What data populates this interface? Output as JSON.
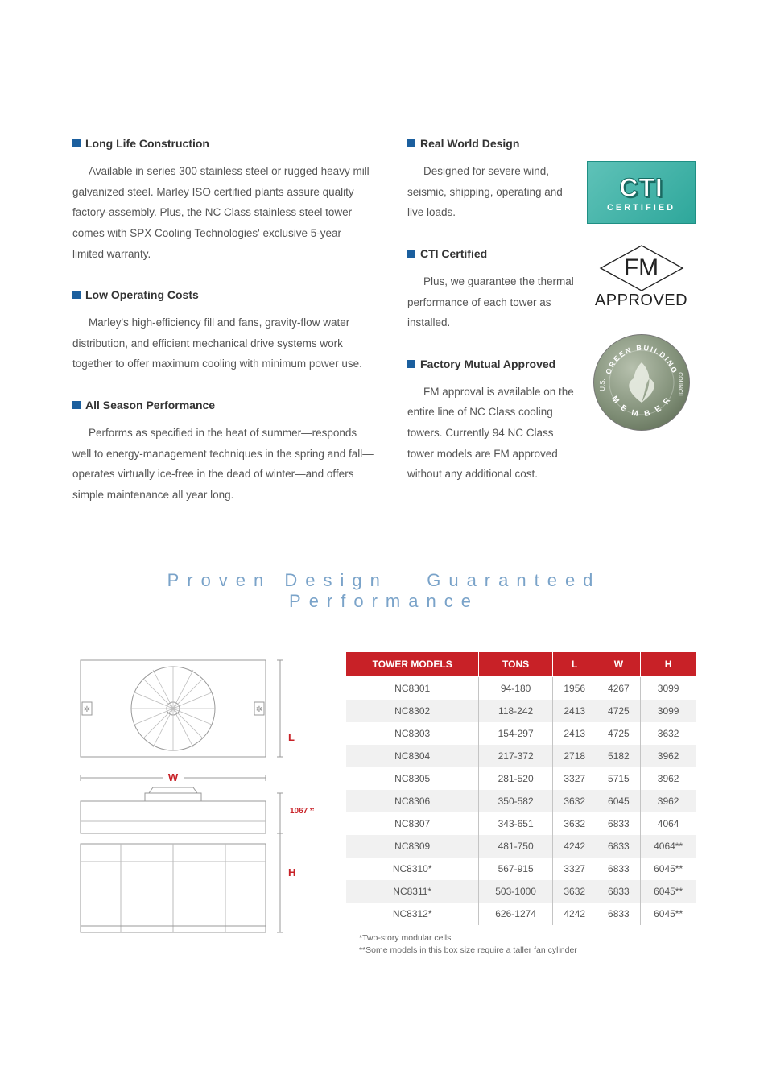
{
  "left_sections": [
    {
      "title": "Long Life Construction",
      "text": "Available in series 300 stainless steel or rugged heavy mill galvanized steel. Marley ISO certified plants assure quality factory-assembly. Plus, the NC Class stainless steel tower comes with SPX Cooling Technologies' exclusive 5-year limited warranty."
    },
    {
      "title": "Low Operating Costs",
      "text": "Marley's high-efficiency fill and fans, gravity-flow water distribution, and efficient mechanical drive systems work together to offer maximum cooling with minimum power use."
    },
    {
      "title": "All Season Performance",
      "text": "Performs as specified in the heat of summer—responds well to energy-management techniques in the spring and fall—operates virtually ice-free in the dead of winter—and offers simple maintenance all year long."
    }
  ],
  "right_sections": [
    {
      "title": "Real World Design",
      "text": "Designed for severe wind, seismic, shipping, operating and live loads."
    },
    {
      "title": "CTI Certified",
      "text": "Plus, we guarantee the thermal performance of each tower as installed."
    },
    {
      "title": "Factory Mutual Approved",
      "text": "FM approval is available on the entire line of NC Class cooling towers. Currently 94 NC Class tower models are FM approved without any additional cost."
    }
  ],
  "badges": {
    "cti_big": "CTI",
    "cti_small": "CERTIFIED",
    "fm_big": "FM",
    "fm_small": "APPROVED",
    "usgbc_top": "GREEN BUILDING",
    "usgbc_side": "U.S.",
    "usgbc_side2": "COUNCIL",
    "usgbc_bottom": "MEMBER"
  },
  "tagline_a": "Proven Design",
  "tagline_b": "Guaranteed Performance",
  "diagram": {
    "label_L": "L",
    "label_W": "W",
    "label_H": "H",
    "label_1067": "1067 **"
  },
  "table": {
    "headers": [
      "TOWER MODELS",
      "TONS",
      "L",
      "W",
      "H"
    ],
    "rows": [
      [
        "NC8301",
        "94-180",
        "1956",
        "4267",
        "3099"
      ],
      [
        "NC8302",
        "118-242",
        "2413",
        "4725",
        "3099"
      ],
      [
        "NC8303",
        "154-297",
        "2413",
        "4725",
        "3632"
      ],
      [
        "NC8304",
        "217-372",
        "2718",
        "5182",
        "3962"
      ],
      [
        "NC8305",
        "281-520",
        "3327",
        "5715",
        "3962"
      ],
      [
        "NC8306",
        "350-582",
        "3632",
        "6045",
        "3962"
      ],
      [
        "NC8307",
        "343-651",
        "3632",
        "6833",
        "4064"
      ],
      [
        "NC8309",
        "481-750",
        "4242",
        "6833",
        "4064**"
      ],
      [
        "NC8310*",
        "567-915",
        "3327",
        "6833",
        "6045**"
      ],
      [
        "NC8311*",
        "503-1000",
        "3632",
        "6833",
        "6045**"
      ],
      [
        "NC8312*",
        "626-1274",
        "4242",
        "6833",
        "6045**"
      ]
    ],
    "footnote1": "*Two-story modular cells",
    "footnote2": "**Some models in this box size require a taller fan cylinder"
  },
  "colors": {
    "bullet": "#1b5f9e",
    "header_bg": "#c82127",
    "tagline": "#7aa3c9",
    "row_alt": "#f1f1f1"
  }
}
